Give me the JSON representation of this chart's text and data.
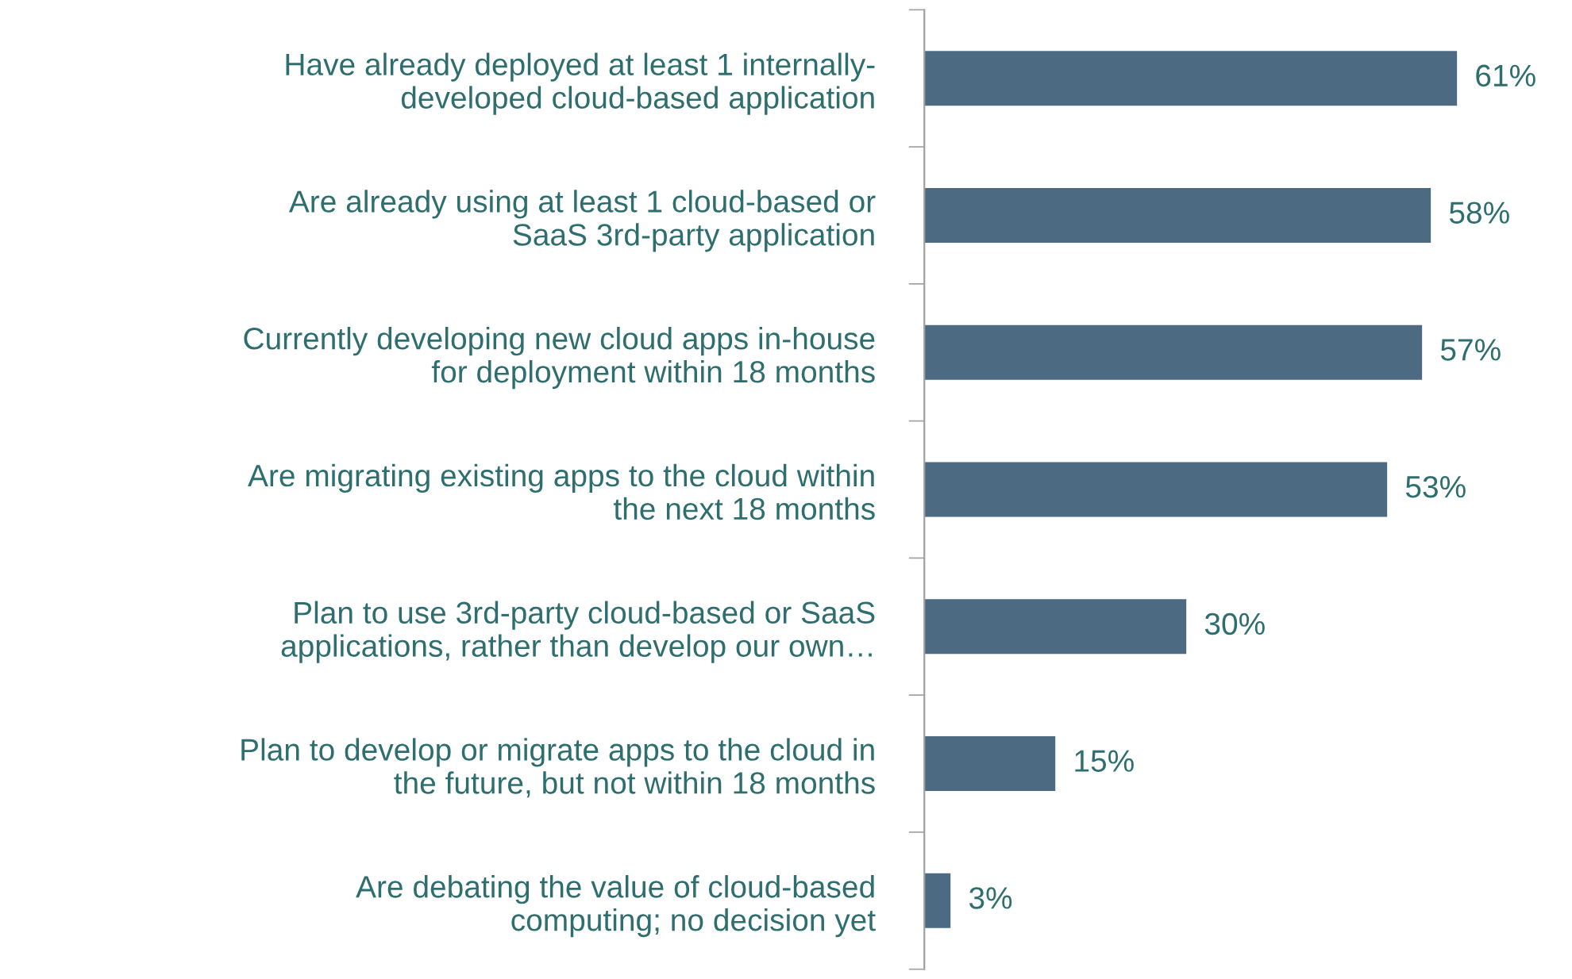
{
  "chart_data": {
    "type": "bar",
    "orientation": "horizontal",
    "categories": [
      "Have already deployed at least 1 internally-\ndeveloped cloud-based application",
      "Are already using at least 1 cloud-based or\nSaaS 3rd-party application",
      "Currently developing new cloud apps in-house\nfor deployment within 18 months",
      "Are migrating existing apps to the cloud within\nthe next 18 months",
      "Plan to use 3rd-party cloud-based or SaaS\napplications, rather than develop our own…",
      "Plan to develop or migrate apps to the cloud in\nthe future, but not within 18 months",
      "Are debating the value of cloud-based\ncomputing; no decision yet"
    ],
    "values": [
      61,
      58,
      57,
      53,
      30,
      15,
      3
    ],
    "value_labels": [
      "61%",
      "58%",
      "57%",
      "53%",
      "30%",
      "15%",
      "3%"
    ],
    "color": "#4d6a83"
  }
}
